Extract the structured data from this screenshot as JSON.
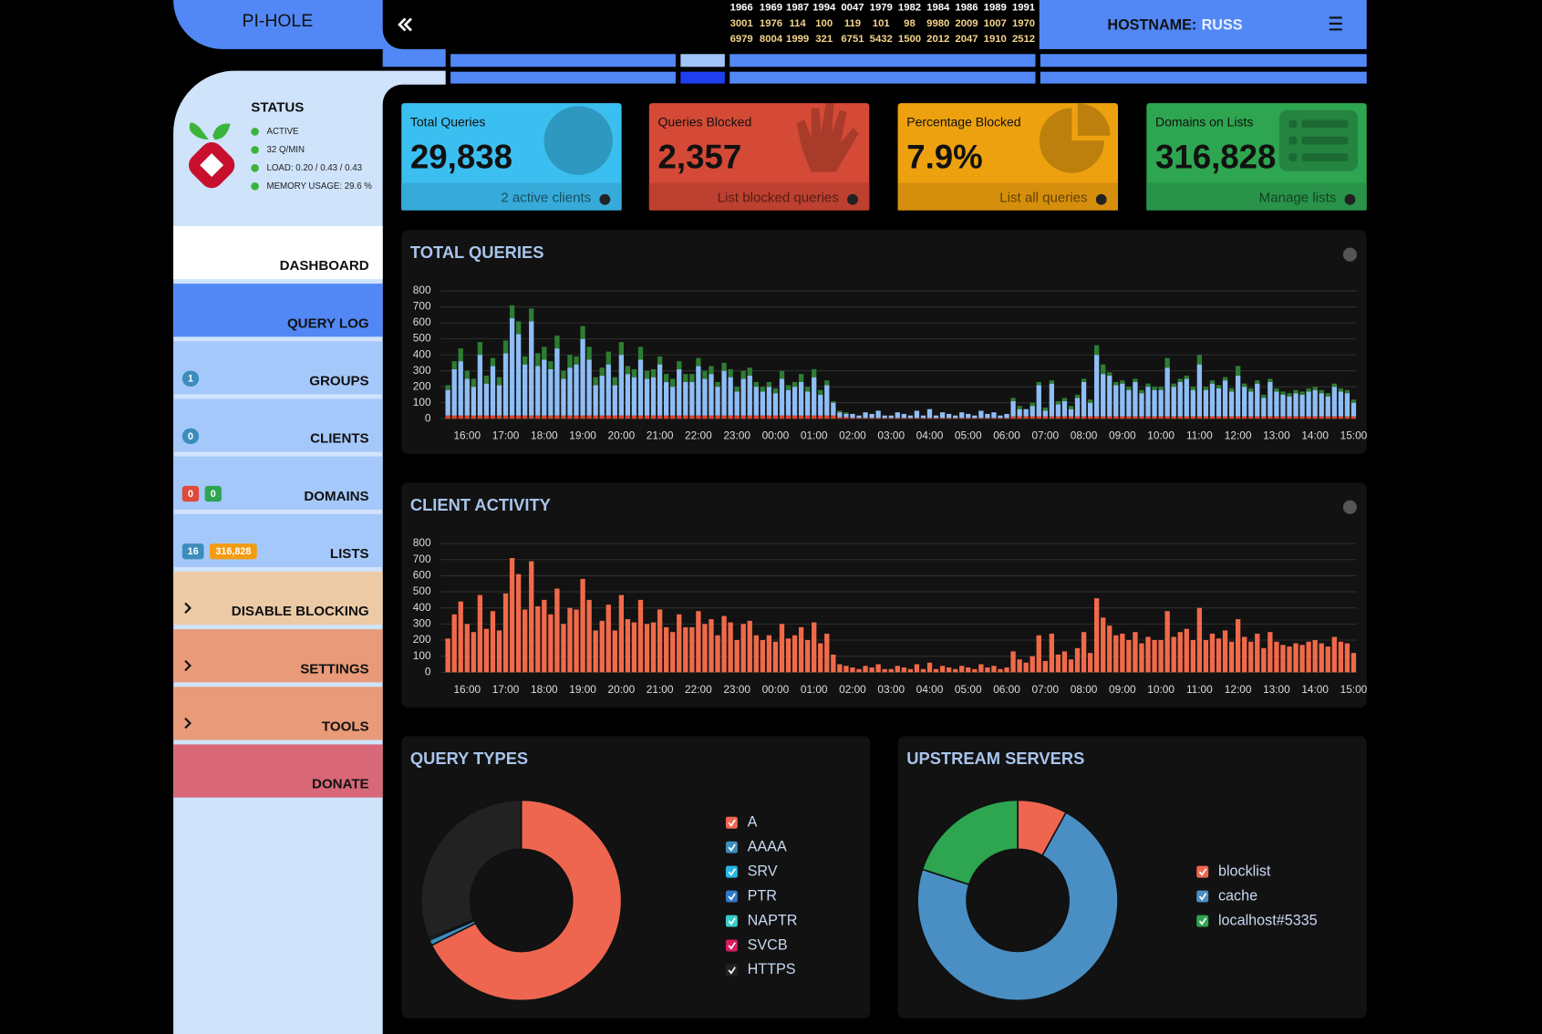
{
  "header": {
    "brand": "PI-HOLE",
    "hostname_label": "HOSTNAME:",
    "hostname": "RUSS",
    "ticker": [
      [
        "1966",
        "1969",
        "1987",
        "1994",
        "0047",
        "1979",
        "1982",
        "1984",
        "1986",
        "1989",
        "1991"
      ],
      [
        "3001",
        "1976",
        "114",
        "100",
        "119",
        "101",
        "98",
        "9980",
        "2009",
        "1007",
        "1970"
      ],
      [
        "6979",
        "8004",
        "1999",
        "321",
        "6751",
        "5432",
        "1500",
        "2012",
        "2047",
        "1910",
        "2512"
      ]
    ]
  },
  "status": {
    "title": "STATUS",
    "items": [
      "ACTIVE",
      "32 Q/MIN",
      "LOAD: 0.20 / 0.43 / 0.43",
      "MEMORY USAGE: 29.6 %"
    ]
  },
  "nav": [
    {
      "label": "DASHBOARD"
    },
    {
      "label": "QUERY LOG"
    },
    {
      "label": "GROUPS",
      "badges": [
        "1"
      ]
    },
    {
      "label": "CLIENTS",
      "badges": [
        "0"
      ]
    },
    {
      "label": "DOMAINS",
      "badges": [
        "0",
        "0"
      ]
    },
    {
      "label": "LISTS",
      "badges": [
        "16",
        "316,828"
      ]
    },
    {
      "label": "DISABLE BLOCKING"
    },
    {
      "label": "SETTINGS"
    },
    {
      "label": "TOOLS"
    },
    {
      "label": "DONATE"
    }
  ],
  "stats": [
    {
      "title": "Total Queries",
      "value": "29,838",
      "link": "2 active clients"
    },
    {
      "title": "Queries Blocked",
      "value": "2,357",
      "link": "List blocked queries"
    },
    {
      "title": "Percentage Blocked",
      "value": "7.9%",
      "link": "List all queries"
    },
    {
      "title": "Domains on Lists",
      "value": "316,828",
      "link": "Manage lists"
    }
  ],
  "total_queries_chart": {
    "type": "bar",
    "stacked": true,
    "title": "TOTAL QUERIES",
    "categories": [
      null,
      null,
      null,
      "16:00",
      null,
      null,
      null,
      null,
      null,
      "17:00",
      null,
      null,
      null,
      null,
      null,
      "18:00",
      null,
      null,
      null,
      null,
      null,
      "19:00",
      null,
      null,
      null,
      null,
      null,
      "20:00",
      null,
      null,
      null,
      null,
      null,
      "21:00",
      null,
      null,
      null,
      null,
      null,
      "22:00",
      null,
      null,
      null,
      null,
      null,
      "23:00",
      null,
      null,
      null,
      null,
      null,
      "00:00",
      null,
      null,
      null,
      null,
      null,
      "01:00",
      null,
      null,
      null,
      null,
      null,
      "02:00",
      null,
      null,
      null,
      null,
      null,
      "03:00",
      null,
      null,
      null,
      null,
      null,
      "04:00",
      null,
      null,
      null,
      null,
      null,
      "05:00",
      null,
      null,
      null,
      null,
      null,
      "06:00",
      null,
      null,
      null,
      null,
      null,
      "07:00",
      null,
      null,
      null,
      null,
      null,
      "08:00",
      null,
      null,
      null,
      null,
      null,
      "09:00",
      null,
      null,
      null,
      null,
      null,
      "10:00",
      null,
      null,
      null,
      null,
      null,
      "11:00",
      null,
      null,
      null,
      null,
      null,
      "12:00",
      null,
      null,
      null,
      null,
      null,
      "13:00",
      null,
      null,
      null,
      null,
      null,
      "14:00",
      null,
      null,
      null,
      null,
      null,
      "15:00"
    ],
    "series": [
      {
        "color": "#e0442c",
        "values": [
          20,
          20,
          20,
          20,
          20,
          20,
          20,
          20,
          20,
          20,
          20,
          20,
          20,
          20,
          20,
          20,
          20,
          20,
          20,
          20,
          20,
          20,
          20,
          20,
          20,
          20,
          20,
          20,
          20,
          20,
          20,
          20,
          20,
          20,
          20,
          20,
          20,
          20,
          20,
          20,
          20,
          20,
          20,
          20,
          20,
          20,
          20,
          20,
          20,
          20,
          20,
          20,
          20,
          20,
          20,
          20,
          20,
          20,
          20,
          20,
          20,
          10,
          10,
          5,
          5,
          5,
          5,
          5,
          5,
          5,
          5,
          5,
          5,
          5,
          5,
          5,
          5,
          5,
          5,
          5,
          5,
          5,
          5,
          5,
          5,
          5,
          5,
          5,
          15,
          15,
          15,
          15,
          15,
          15,
          15,
          15,
          15,
          15,
          15,
          15,
          15,
          15,
          15,
          15,
          15,
          15,
          15,
          15,
          15,
          15,
          15,
          15,
          15,
          15,
          15,
          15,
          15,
          15,
          15,
          15,
          15,
          15,
          15,
          15,
          15,
          15,
          15,
          15,
          15,
          15,
          15,
          15,
          15,
          15,
          15,
          15,
          15,
          15,
          15,
          15,
          15,
          15
        ]
      },
      {
        "color": "#8fbdf5",
        "values": [
          160,
          290,
          340,
          230,
          180,
          380,
          200,
          310,
          190,
          390,
          610,
          510,
          320,
          590,
          310,
          350,
          290,
          420,
          230,
          300,
          320,
          480,
          350,
          190,
          250,
          320,
          190,
          380,
          260,
          240,
          350,
          230,
          240,
          320,
          210,
          180,
          290,
          210,
          210,
          310,
          230,
          260,
          180,
          280,
          240,
          150,
          230,
          250,
          180,
          150,
          180,
          140,
          230,
          160,
          180,
          210,
          150,
          240,
          130,
          190,
          80,
          30,
          20,
          25,
          15,
          35,
          25,
          45,
          15,
          15,
          35,
          25,
          15,
          45,
          15,
          55,
          15,
          35,
          25,
          15,
          35,
          25,
          15,
          45,
          25,
          35,
          15,
          25,
          95,
          45,
          45,
          65,
          195,
          35,
          205,
          75,
          95,
          45,
          115,
          215,
          85,
          385,
          265,
          255,
          195,
          205,
          165,
          215,
          145,
          185,
          165,
          165,
          305,
          185,
          215,
          235,
          165,
          325,
          165,
          205,
          175,
          225,
          155,
          255,
          185,
          155,
          205,
          115,
          215,
          155,
          135,
          125,
          145,
          135,
          155,
          165,
          145,
          125,
          185,
          155,
          145,
          85
        ]
      },
      {
        "color": "#2d7d32",
        "values": [
          30,
          50,
          80,
          50,
          50,
          80,
          50,
          50,
          50,
          80,
          80,
          80,
          50,
          80,
          80,
          80,
          50,
          80,
          50,
          80,
          50,
          80,
          80,
          50,
          50,
          80,
          50,
          80,
          50,
          50,
          80,
          50,
          50,
          50,
          50,
          50,
          50,
          50,
          50,
          50,
          50,
          50,
          30,
          50,
          50,
          30,
          50,
          50,
          30,
          30,
          30,
          30,
          50,
          30,
          30,
          50,
          30,
          50,
          30,
          30,
          10,
          10,
          10,
          0,
          0,
          0,
          0,
          0,
          0,
          0,
          0,
          0,
          0,
          0,
          0,
          0,
          0,
          0,
          0,
          0,
          0,
          0,
          0,
          0,
          0,
          0,
          0,
          0,
          20,
          20,
          0,
          20,
          20,
          20,
          20,
          20,
          20,
          20,
          20,
          20,
          20,
          60,
          60,
          20,
          20,
          20,
          20,
          20,
          20,
          20,
          20,
          20,
          60,
          20,
          20,
          20,
          20,
          60,
          20,
          20,
          20,
          20,
          20,
          60,
          20,
          20,
          20,
          20,
          20,
          20,
          20,
          20,
          20,
          20,
          20,
          20,
          20,
          20,
          20,
          20,
          20,
          20
        ]
      }
    ],
    "ylim": [
      0,
      800
    ],
    "yticks": [
      0,
      100,
      200,
      300,
      400,
      500,
      600,
      700,
      800
    ],
    "grid": true
  },
  "client_activity_chart": {
    "type": "bar",
    "title": "CLIENT ACTIVITY",
    "categories": [
      null,
      null,
      null,
      "16:00",
      null,
      null,
      null,
      null,
      null,
      "17:00",
      null,
      null,
      null,
      null,
      null,
      "18:00",
      null,
      null,
      null,
      null,
      null,
      "19:00",
      null,
      null,
      null,
      null,
      null,
      "20:00",
      null,
      null,
      null,
      null,
      null,
      "21:00",
      null,
      null,
      null,
      null,
      null,
      "22:00",
      null,
      null,
      null,
      null,
      null,
      "23:00",
      null,
      null,
      null,
      null,
      null,
      "00:00",
      null,
      null,
      null,
      null,
      null,
      "01:00",
      null,
      null,
      null,
      null,
      null,
      "02:00",
      null,
      null,
      null,
      null,
      null,
      "03:00",
      null,
      null,
      null,
      null,
      null,
      "04:00",
      null,
      null,
      null,
      null,
      null,
      "05:00",
      null,
      null,
      null,
      null,
      null,
      "06:00",
      null,
      null,
      null,
      null,
      null,
      "07:00",
      null,
      null,
      null,
      null,
      null,
      "08:00",
      null,
      null,
      null,
      null,
      null,
      "09:00",
      null,
      null,
      null,
      null,
      null,
      "10:00",
      null,
      null,
      null,
      null,
      null,
      "11:00",
      null,
      null,
      null,
      null,
      null,
      "12:00",
      null,
      null,
      null,
      null,
      null,
      "13:00",
      null,
      null,
      null,
      null,
      null,
      "14:00",
      null,
      null,
      null,
      null,
      null,
      "15:00"
    ],
    "color": "#f06a4a",
    "values": [
      210,
      360,
      440,
      300,
      250,
      480,
      270,
      380,
      260,
      490,
      710,
      610,
      390,
      690,
      410,
      450,
      360,
      520,
      300,
      400,
      390,
      580,
      450,
      260,
      320,
      420,
      260,
      480,
      330,
      310,
      450,
      300,
      310,
      390,
      280,
      250,
      360,
      280,
      280,
      380,
      300,
      330,
      230,
      350,
      310,
      200,
      300,
      320,
      230,
      200,
      230,
      190,
      300,
      210,
      230,
      280,
      200,
      310,
      180,
      240,
      110,
      50,
      40,
      30,
      20,
      40,
      30,
      50,
      20,
      20,
      40,
      30,
      20,
      50,
      20,
      60,
      20,
      40,
      30,
      20,
      40,
      30,
      20,
      50,
      30,
      40,
      20,
      30,
      130,
      80,
      60,
      100,
      230,
      70,
      240,
      110,
      130,
      80,
      150,
      250,
      120,
      460,
      340,
      290,
      230,
      240,
      200,
      250,
      180,
      220,
      200,
      200,
      380,
      220,
      250,
      270,
      200,
      400,
      200,
      240,
      210,
      260,
      190,
      330,
      220,
      190,
      240,
      150,
      250,
      190,
      170,
      160,
      180,
      170,
      190,
      200,
      180,
      160,
      220,
      190,
      180,
      120
    ],
    "ylim": [
      0,
      800
    ],
    "yticks": [
      0,
      100,
      200,
      300,
      400,
      500,
      600,
      700,
      800
    ],
    "grid": true
  },
  "query_types_chart": {
    "type": "doughnut",
    "title": "QUERY TYPES",
    "categories": [
      "A",
      "AAAA",
      "SRV",
      "PTR",
      "NAPTR",
      "SVCB",
      "HTTPS"
    ],
    "values": [
      67.6,
      0.9,
      0,
      0.3,
      0,
      0,
      31.2
    ],
    "colors": [
      "#ee6650",
      "#3c8dbc",
      "#25b6e6",
      "#2e79c4",
      "#39cccc",
      "#d81b60",
      "#222222"
    ]
  },
  "upstream_chart": {
    "type": "doughnut",
    "title": "UPSTREAM SERVERS",
    "categories": [
      "blocklist",
      "cache",
      "localhost#5335"
    ],
    "values": [
      8,
      72,
      20
    ],
    "colors": [
      "#ee6650",
      "#4a8fc4",
      "#2ea550"
    ]
  }
}
